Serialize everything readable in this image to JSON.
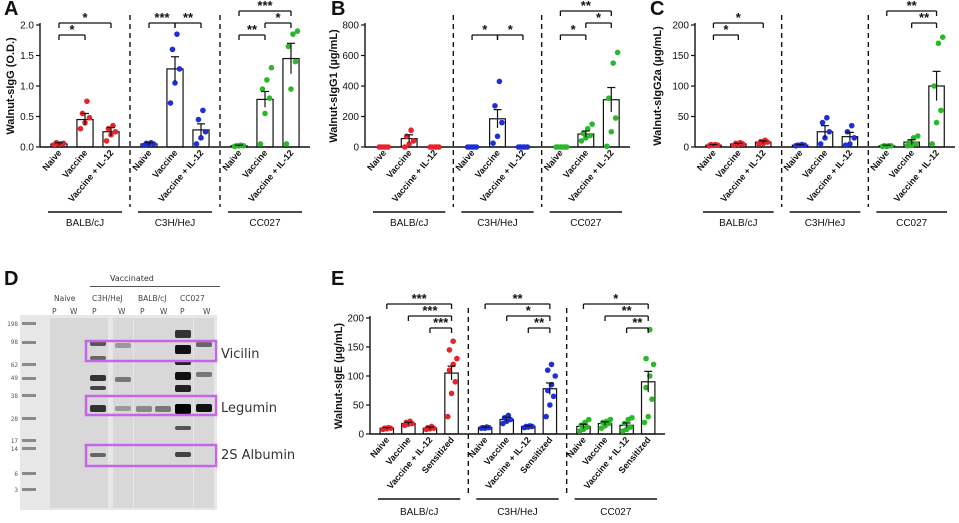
{
  "figure": {
    "panel_letters": [
      "A",
      "B",
      "C",
      "D",
      "E"
    ]
  },
  "colors": {
    "BALB/cJ": "#e8232b",
    "C3H/HeJ": "#1f2fd6",
    "CC027": "#2ab82a",
    "axis": "#111111",
    "box": "#c566e8"
  },
  "chart_data": [
    {
      "panel": "A",
      "type": "bar",
      "ylabel": "Walnut-sIgG (O.D.)",
      "ylim": [
        0,
        2.0
      ],
      "yticks": [
        "0.0",
        "0.5",
        "1.0",
        "1.5",
        "2.0"
      ],
      "groups": [
        "BALB/cJ",
        "C3H/HeJ",
        "CC027"
      ],
      "categories": [
        "Naive",
        "Vaccine",
        "Vaccine + IL-12"
      ],
      "values": [
        [
          0.05,
          0.45,
          0.25
        ],
        [
          0.05,
          1.28,
          0.28
        ],
        [
          0.02,
          0.78,
          1.45
        ]
      ],
      "errors": [
        [
          0.02,
          0.1,
          0.07
        ],
        [
          0.02,
          0.2,
          0.1
        ],
        [
          0.01,
          0.13,
          0.25
        ]
      ],
      "points": [
        [
          [
            0.04,
            0.05,
            0.06,
            0.07,
            0.05
          ],
          [
            0.3,
            0.4,
            0.48,
            0.55,
            0.75
          ],
          [
            0.1,
            0.2,
            0.25,
            0.3,
            0.35
          ]
        ],
        [
          [
            0.03,
            0.05,
            0.05,
            0.06,
            0.07
          ],
          [
            0.72,
            1.05,
            1.28,
            1.6,
            1.85
          ],
          [
            0.05,
            0.15,
            0.25,
            0.45,
            0.6
          ]
        ],
        [
          [
            0.01,
            0.02,
            0.02,
            0.02,
            0.03
          ],
          [
            0.05,
            0.55,
            0.8,
            0.95,
            1.1,
            1.3
          ],
          [
            0.05,
            0.95,
            1.4,
            1.65,
            1.85,
            1.9
          ]
        ]
      ],
      "significance": [
        {
          "group": 0,
          "from": 0,
          "to": 2,
          "level": 3,
          "label": "*"
        },
        {
          "group": 0,
          "from": 0,
          "to": 1,
          "level": 2,
          "label": "*"
        },
        {
          "group": 1,
          "from": 0,
          "to": 1,
          "level": 3,
          "label": "***"
        },
        {
          "group": 1,
          "from": 1,
          "to": 2,
          "level": 3,
          "label": "**"
        },
        {
          "group": 2,
          "from": 0,
          "to": 2,
          "level": 4,
          "label": "***"
        },
        {
          "group": 2,
          "from": 1,
          "to": 2,
          "level": 3,
          "label": "*"
        },
        {
          "group": 2,
          "from": 0,
          "to": 1,
          "level": 2,
          "label": "**"
        }
      ]
    },
    {
      "panel": "B",
      "type": "bar",
      "ylabel": "Walnut-sIgG1 (µg/mL)",
      "ylim": [
        0,
        800
      ],
      "yticks": [
        "0",
        "200",
        "400",
        "600",
        "800"
      ],
      "groups": [
        "BALB/cJ",
        "C3H/HeJ",
        "CC027"
      ],
      "categories": [
        "Naive",
        "Vaccine",
        "Vaccine + IL-12"
      ],
      "values": [
        [
          0,
          55,
          0
        ],
        [
          0,
          185,
          0
        ],
        [
          0,
          85,
          310
        ]
      ],
      "errors": [
        [
          0,
          25,
          0
        ],
        [
          0,
          60,
          0
        ],
        [
          0,
          20,
          80
        ]
      ],
      "points": [
        [
          [
            0,
            0,
            0,
            0,
            0
          ],
          [
            0,
            20,
            40,
            70,
            110
          ],
          [
            0,
            0,
            0,
            0,
            0
          ]
        ],
        [
          [
            0,
            0,
            0,
            0,
            0
          ],
          [
            25,
            70,
            160,
            270,
            430
          ],
          [
            0,
            0,
            0,
            0,
            0
          ]
        ],
        [
          [
            0,
            0,
            0,
            0,
            0,
            0
          ],
          [
            40,
            60,
            75,
            90,
            120,
            150
          ],
          [
            5,
            100,
            190,
            320,
            550,
            620
          ]
        ]
      ],
      "significance": [
        {
          "group": 1,
          "from": 0,
          "to": 1,
          "level": 2,
          "label": "*"
        },
        {
          "group": 1,
          "from": 1,
          "to": 2,
          "level": 2,
          "label": "*"
        },
        {
          "group": 2,
          "from": 0,
          "to": 2,
          "level": 4,
          "label": "**"
        },
        {
          "group": 2,
          "from": 1,
          "to": 2,
          "level": 3,
          "label": "*"
        },
        {
          "group": 2,
          "from": 0,
          "to": 1,
          "level": 2,
          "label": "*"
        }
      ]
    },
    {
      "panel": "C",
      "type": "bar",
      "ylabel": "Walnut-sIgG2a (µg/mL)",
      "ylim": [
        0,
        200
      ],
      "yticks": [
        "0",
        "50",
        "100",
        "150",
        "200"
      ],
      "groups": [
        "BALB/cJ",
        "C3H/HeJ",
        "CC027"
      ],
      "categories": [
        "Naive",
        "Vaccine",
        "Vaccine + IL-12"
      ],
      "values": [
        [
          3,
          5,
          8
        ],
        [
          3,
          25,
          17
        ],
        [
          2,
          8,
          100
        ]
      ],
      "errors": [
        [
          1,
          1,
          2
        ],
        [
          1,
          10,
          7
        ],
        [
          1,
          4,
          24
        ]
      ],
      "points": [
        [
          [
            2,
            3,
            3,
            4,
            4
          ],
          [
            3,
            4,
            5,
            6,
            7
          ],
          [
            5,
            6,
            8,
            9,
            11
          ]
        ],
        [
          [
            2,
            3,
            3,
            3,
            4
          ],
          [
            5,
            15,
            25,
            40,
            48
          ],
          [
            3,
            5,
            15,
            25,
            35
          ]
        ],
        [
          [
            1,
            1,
            2,
            2,
            2
          ],
          [
            2,
            3,
            5,
            8,
            15,
            18
          ],
          [
            5,
            40,
            60,
            100,
            170,
            180
          ]
        ]
      ],
      "significance": [
        {
          "group": 0,
          "from": 0,
          "to": 2,
          "level": 3,
          "label": "*"
        },
        {
          "group": 0,
          "from": 0,
          "to": 1,
          "level": 2,
          "label": "*"
        },
        {
          "group": 2,
          "from": 0,
          "to": 2,
          "level": 4,
          "label": "**"
        },
        {
          "group": 2,
          "from": 1,
          "to": 2,
          "level": 3,
          "label": "**"
        }
      ]
    },
    {
      "panel": "E",
      "type": "bar",
      "ylabel": "Walnut-sIgE (µg/mL)",
      "ylim": [
        0,
        200
      ],
      "yticks": [
        "0",
        "50",
        "100",
        "150",
        "200"
      ],
      "groups": [
        "BALB/cJ",
        "C3H/HeJ",
        "CC027"
      ],
      "categories": [
        "Naive",
        "Vaccine",
        "Vaccine + IL-12",
        "Sensitized"
      ],
      "values": [
        [
          10,
          18,
          10,
          105
        ],
        [
          11,
          25,
          13,
          78
        ],
        [
          13,
          18,
          15,
          90
        ]
      ],
      "errors": [
        [
          1,
          2,
          2,
          12
        ],
        [
          1,
          4,
          1,
          10
        ],
        [
          4,
          3,
          4,
          18
        ]
      ],
      "points": [
        [
          [
            8,
            9,
            10,
            10,
            11
          ],
          [
            15,
            17,
            18,
            20,
            22
          ],
          [
            8,
            9,
            10,
            11,
            13
          ],
          [
            30,
            70,
            90,
            110,
            120,
            130,
            145,
            160
          ]
        ],
        [
          [
            10,
            10,
            11,
            11,
            12
          ],
          [
            18,
            22,
            25,
            28,
            32
          ],
          [
            11,
            12,
            13,
            13,
            14
          ],
          [
            30,
            50,
            65,
            75,
            85,
            100,
            110,
            120
          ]
        ],
        [
          [
            5,
            8,
            12,
            15,
            20,
            25
          ],
          [
            10,
            14,
            18,
            20,
            22,
            25
          ],
          [
            5,
            8,
            12,
            18,
            25,
            28
          ],
          [
            20,
            30,
            60,
            80,
            100,
            120,
            130,
            180
          ]
        ]
      ],
      "significance": [
        {
          "group": 0,
          "from": 0,
          "to": 3,
          "level": 4,
          "label": "***"
        },
        {
          "group": 0,
          "from": 1,
          "to": 3,
          "level": 3,
          "label": "***"
        },
        {
          "group": 0,
          "from": 2,
          "to": 3,
          "level": 2,
          "label": "***"
        },
        {
          "group": 1,
          "from": 0,
          "to": 3,
          "level": 4,
          "label": "**"
        },
        {
          "group": 1,
          "from": 1,
          "to": 3,
          "level": 3,
          "label": "*"
        },
        {
          "group": 1,
          "from": 2,
          "to": 3,
          "level": 2,
          "label": "**"
        },
        {
          "group": 2,
          "from": 0,
          "to": 3,
          "level": 4,
          "label": "*"
        },
        {
          "group": 2,
          "from": 1,
          "to": 3,
          "level": 3,
          "label": "**"
        },
        {
          "group": 2,
          "from": 2,
          "to": 3,
          "level": 2,
          "label": "**"
        }
      ]
    }
  ],
  "western_blot": {
    "header": "Vaccinated",
    "lane_groups": [
      "Naive",
      "C3H/HeJ",
      "BALB/cJ",
      "CC027"
    ],
    "lane_subs": [
      "P",
      "W"
    ],
    "mw_markers": [
      "198",
      "98",
      "62",
      "49",
      "38",
      "28",
      "17",
      "14",
      "6",
      "3"
    ],
    "bands": [
      "Vicilin",
      "Legumin",
      "2S Albumin"
    ]
  }
}
